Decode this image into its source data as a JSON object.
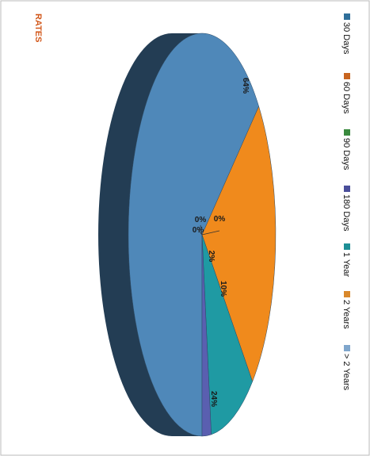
{
  "chart_data": {
    "type": "pie",
    "title": "RATES",
    "rotation": "rotated 90 degrees clockwise",
    "legend_position": "right",
    "categories": [
      "30 Days",
      "60 Days",
      "90 Days",
      "180 Days",
      "1 Year",
      "2 Years",
      "> 2 Years"
    ],
    "values": [
      64,
      24,
      0,
      0,
      0,
      10,
      2
    ],
    "labels": [
      "64%",
      "24%",
      "0%",
      "0%",
      "0%",
      "10%",
      "2%"
    ],
    "colors": [
      "#4f88b9",
      "#f08a1c",
      "#3a8a3e",
      "#6a6bb0",
      "#1e8f96",
      "#1f9aa3",
      "#5a5fb0"
    ]
  },
  "legend": {
    "entries": [
      {
        "label": "30 Days",
        "color": "#2f6f9a"
      },
      {
        "label": "60 Days",
        "color": "#c8651f"
      },
      {
        "label": "90 Days",
        "color": "#3a8a3e"
      },
      {
        "label": "180 Days",
        "color": "#4a4e9a"
      },
      {
        "label": "1 Year",
        "color": "#1e8f96"
      },
      {
        "label": "2 Years",
        "color": "#d9882b"
      },
      {
        "label": "> 2 Years",
        "color": "#7fa6cc"
      }
    ]
  },
  "style": {
    "title_color": "#d2571a",
    "border_color": "#bbbbbb",
    "side_color": "#1f4a6b"
  }
}
